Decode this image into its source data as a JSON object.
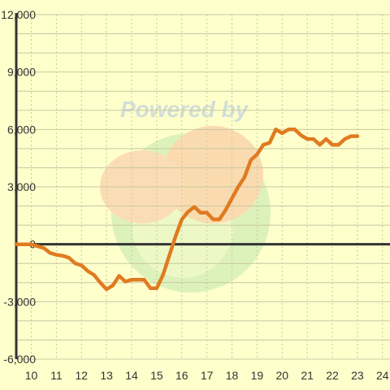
{
  "colors": {
    "background": "#ffffcc",
    "grid": "#c8c8a0",
    "axis": "#333333",
    "series": "#e07b20"
  },
  "watermark": {
    "text": "Powered by"
  },
  "chart_data": {
    "type": "line",
    "title": "",
    "xlabel": "",
    "ylabel": "",
    "xlim": [
      9.4,
      24.3
    ],
    "ylim": [
      -6000,
      12000
    ],
    "x_ticks": [
      10,
      11,
      12,
      13,
      14,
      15,
      16,
      17,
      18,
      19,
      20,
      21,
      22,
      23,
      24
    ],
    "y_ticks": [
      -6000,
      -3000,
      0,
      3000,
      6000,
      9000,
      12000
    ],
    "x_tick_labels": [
      "10",
      "11",
      "12",
      "13",
      "14",
      "15",
      "16",
      "17",
      "18",
      "19",
      "20",
      "21",
      "22",
      "23",
      "24"
    ],
    "y_tick_labels": [
      "-6,000",
      "-3,000",
      "0",
      "3,000",
      "6,000",
      "9,000",
      "12,000"
    ],
    "grid": true,
    "series": [
      {
        "x": [
          9.4,
          9.75,
          10.0,
          10.25,
          10.5,
          10.75,
          11.0,
          11.25,
          11.5,
          11.75,
          12.0,
          12.25,
          12.5,
          12.75,
          13.0,
          13.25,
          13.5,
          13.75,
          14.0,
          14.25,
          14.5,
          14.75,
          15.0,
          15.25,
          15.5,
          15.75,
          16.0,
          16.25,
          16.5,
          16.75,
          17.0,
          17.25,
          17.5,
          17.75,
          18.0,
          18.25,
          18.5,
          18.75,
          19.0,
          19.25,
          19.5,
          19.75,
          20.0,
          20.25,
          20.5,
          20.75,
          21.0,
          21.25,
          21.5,
          21.75,
          22.0,
          22.25,
          22.5,
          22.75,
          23.0
        ],
        "values": [
          0,
          0,
          0,
          -100,
          -200,
          -450,
          -550,
          -600,
          -700,
          -1000,
          -1100,
          -1400,
          -1600,
          -2000,
          -2350,
          -2150,
          -1650,
          -1950,
          -1850,
          -1850,
          -1850,
          -2300,
          -2300,
          -1600,
          -600,
          400,
          1300,
          1700,
          1950,
          1650,
          1650,
          1300,
          1300,
          1800,
          2400,
          3000,
          3500,
          4400,
          4700,
          5200,
          5300,
          6000,
          5800,
          6000,
          6000,
          5700,
          5500,
          5500,
          5200,
          5500,
          5200,
          5200,
          5500,
          5650,
          5650
        ]
      }
    ]
  }
}
